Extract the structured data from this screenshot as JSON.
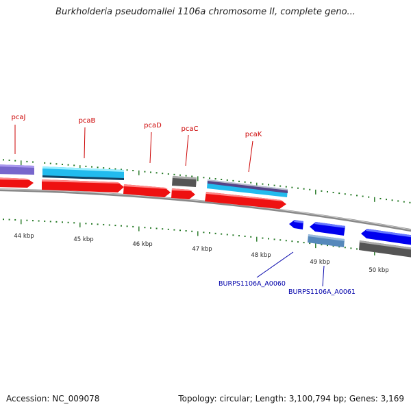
{
  "title": "Burkholderia pseudomallei 1106a chromosome II, complete geno...",
  "kbp_labels": [
    "44 kbp",
    "45 kbp",
    "46 kbp",
    "47 kbp",
    "48 kbp",
    "49 kbp",
    "50 kbp"
  ],
  "gene_labels_top": [
    "pcaJ",
    "pcaB",
    "pcaD",
    "pcaC",
    "pcaK"
  ],
  "gene_labels_bottom": [
    "BURPS1106A_A0060",
    "BURPS1106A_A0061"
  ],
  "colors": {
    "gene_label_top": "#cc0000",
    "gene_label_bottom": "#0000aa",
    "red_gene": "#ee1111",
    "blue_gene": "#0000ee",
    "cyan_gene": "#22bbee",
    "purple_gene": "#7766cc",
    "steel_gene": "#5588bb",
    "gray_gene": "#666666",
    "tick": "#227722"
  },
  "footer": {
    "accession": "Accession: NC_009078",
    "topology": "Topology: circular",
    "length": "Length: 3,100,794 bp",
    "genes": "Genes: 3,169"
  }
}
